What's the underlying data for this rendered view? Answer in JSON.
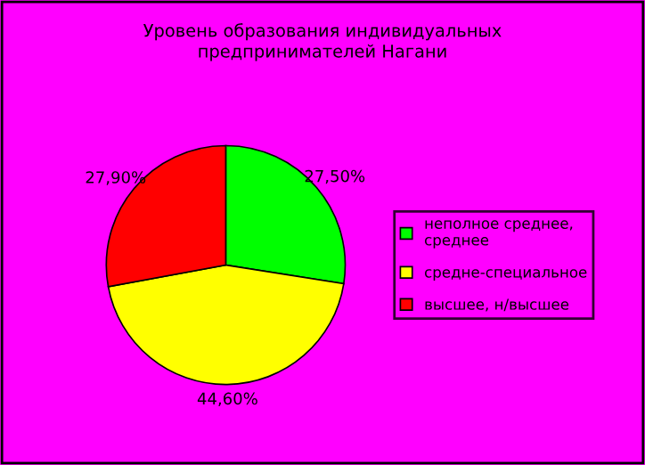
{
  "chart_data": {
    "type": "pie",
    "title": "Уровень образования индивидуальных\nпредпринимателей Нагани",
    "categories": [
      "неполное среднее,\nсреднее",
      "средне-специальное",
      "высшее, н/высшее"
    ],
    "values": [
      27.5,
      44.6,
      27.9
    ],
    "value_labels": [
      "27,50%",
      "44,60%",
      "27,90%"
    ],
    "colors": [
      "#00ff00",
      "#ffff00",
      "#ff0000"
    ],
    "legend": "right"
  }
}
